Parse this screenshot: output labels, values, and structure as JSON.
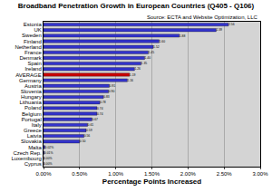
{
  "chart_data": {
    "type": "bar",
    "orientation": "horizontal",
    "title": "Broadband Penetration Growth in European Countries (Q405 - Q106)",
    "annotations": [
      "Source: ECTA and Website Optimization, LLC"
    ],
    "xlabel": "Percentage Points Increased",
    "categories": [
      "Estonia",
      "UK",
      "Sweden",
      "Finland",
      "Netherland",
      "France",
      "Denmark",
      "Spain",
      "Ireland",
      "AVERAGE",
      "Germany",
      "Austria",
      "Slovenia",
      "Hungary",
      "Lithuania",
      "Poland",
      "Belgium",
      "Portugal",
      "Italy",
      "Greece",
      "Latvia",
      "Slovakia",
      "Malta",
      "Czech Rep.",
      "Luxembourg",
      "Cyprus"
    ],
    "values": [
      2.56,
      2.39,
      1.88,
      1.6,
      1.52,
      1.45,
      1.4,
      1.35,
      1.26,
      1.19,
      1.16,
      0.91,
      0.9,
      0.83,
      0.78,
      0.74,
      0.74,
      0.67,
      0.61,
      0.59,
      0.56,
      0.5,
      0.02,
      0.01,
      0.0,
      0.0
    ],
    "value_labels": [
      "2.56",
      "2.39",
      "1.88",
      "1.60",
      "1.52",
      "1.45",
      "1.40",
      "1.35",
      "1.26",
      "1.19",
      "1.16",
      "0.91",
      "0.90",
      "0.83",
      "0.78",
      "0.74",
      "0.74",
      "0.67",
      "0.61",
      "0.59",
      "0.56",
      "0.50",
      "0.02%",
      "0.01%",
      "0.00%",
      "0.00%"
    ],
    "colors": [
      "#3333cc",
      "#3333cc",
      "#3333cc",
      "#3333cc",
      "#3333cc",
      "#3333cc",
      "#3333cc",
      "#3333cc",
      "#3333cc",
      "#cc0000",
      "#3333cc",
      "#3333cc",
      "#3333cc",
      "#3333cc",
      "#3333cc",
      "#3333cc",
      "#3333cc",
      "#3333cc",
      "#3333cc",
      "#3333cc",
      "#3333cc",
      "#3333cc",
      "#3333cc",
      "#3333cc",
      "#3333cc",
      "#3333cc"
    ],
    "xlim": [
      0,
      3
    ],
    "xticks": [
      {
        "value": 0,
        "label": "0.00%"
      },
      {
        "value": 0.5,
        "label": "0.50%"
      },
      {
        "value": 1,
        "label": "1.00%"
      },
      {
        "value": 1.5,
        "label": "1.50%"
      },
      {
        "value": 2,
        "label": "2.00%"
      },
      {
        "value": 2.5,
        "label": "2.50%"
      },
      {
        "value": 3,
        "label": "3.00%"
      }
    ],
    "grid": true,
    "data_labels": true
  }
}
